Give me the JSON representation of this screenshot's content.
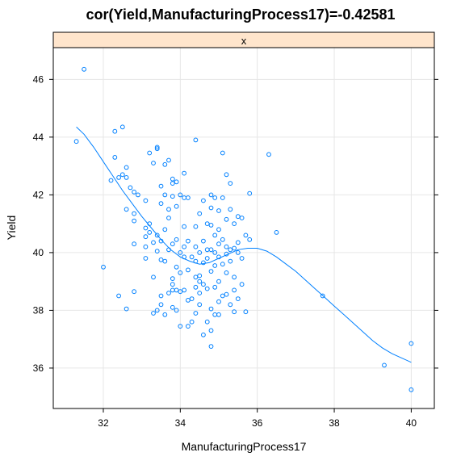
{
  "chart_data": {
    "type": "scatter",
    "title": "cor(Yield,ManufacturingProcess17)=-0.42581",
    "strip_label": "x",
    "xlabel": "ManufacturingProcess17",
    "ylabel": "Yield",
    "xlim": [
      30.7,
      40.6
    ],
    "ylim": [
      34.6,
      47.1
    ],
    "x_ticks": [
      32,
      34,
      36,
      38,
      40
    ],
    "y_ticks": [
      36,
      38,
      40,
      42,
      44,
      46
    ],
    "grid": true,
    "colors": {
      "points": "#0080ff",
      "smooth": "#0080ff",
      "strip": "#ffe5cc"
    },
    "points": [
      [
        31.3,
        43.85
      ],
      [
        31.5,
        46.35
      ],
      [
        32.0,
        39.5
      ],
      [
        32.2,
        42.5
      ],
      [
        32.3,
        43.3
      ],
      [
        32.3,
        44.2
      ],
      [
        32.4,
        42.6
      ],
      [
        32.4,
        38.5
      ],
      [
        32.5,
        44.35
      ],
      [
        32.5,
        42.7
      ],
      [
        32.6,
        42.95
      ],
      [
        32.6,
        42.6
      ],
      [
        32.6,
        41.5
      ],
      [
        32.6,
        38.05
      ],
      [
        32.7,
        42.25
      ],
      [
        32.8,
        41.35
      ],
      [
        32.8,
        41.1
      ],
      [
        32.8,
        38.65
      ],
      [
        32.8,
        42.1
      ],
      [
        32.8,
        40.3
      ],
      [
        32.9,
        42.0
      ],
      [
        33.1,
        41.8
      ],
      [
        33.1,
        40.85
      ],
      [
        33.1,
        40.55
      ],
      [
        33.1,
        39.8
      ],
      [
        33.1,
        40.2
      ],
      [
        33.2,
        43.45
      ],
      [
        33.2,
        41.0
      ],
      [
        33.2,
        40.7
      ],
      [
        33.3,
        37.9
      ],
      [
        33.3,
        43.1
      ],
      [
        33.3,
        40.35
      ],
      [
        33.3,
        39.15
      ],
      [
        33.4,
        43.65
      ],
      [
        33.4,
        43.6
      ],
      [
        33.4,
        40.6
      ],
      [
        33.4,
        40.05
      ],
      [
        33.4,
        38.0
      ],
      [
        33.5,
        42.3
      ],
      [
        33.5,
        41.7
      ],
      [
        33.5,
        40.4
      ],
      [
        33.5,
        39.75
      ],
      [
        33.5,
        38.5
      ],
      [
        33.5,
        38.2
      ],
      [
        33.6,
        43.05
      ],
      [
        33.6,
        42.0
      ],
      [
        33.6,
        40.8
      ],
      [
        33.6,
        39.7
      ],
      [
        33.6,
        37.85
      ],
      [
        33.7,
        43.2
      ],
      [
        33.7,
        41.5
      ],
      [
        33.7,
        41.2
      ],
      [
        33.7,
        40.1
      ],
      [
        33.7,
        38.6
      ],
      [
        33.8,
        42.55
      ],
      [
        33.8,
        42.4
      ],
      [
        33.8,
        41.95
      ],
      [
        33.8,
        40.3
      ],
      [
        33.8,
        39.1
      ],
      [
        33.8,
        38.9
      ],
      [
        33.8,
        38.7
      ],
      [
        33.8,
        38.1
      ],
      [
        33.9,
        42.45
      ],
      [
        33.9,
        41.6
      ],
      [
        33.9,
        40.45
      ],
      [
        33.9,
        39.5
      ],
      [
        33.9,
        38.7
      ],
      [
        33.9,
        38.0
      ],
      [
        34.0,
        42.0
      ],
      [
        34.0,
        40.0
      ],
      [
        34.0,
        39.3
      ],
      [
        34.0,
        38.65
      ],
      [
        34.0,
        37.45
      ],
      [
        34.1,
        42.75
      ],
      [
        34.1,
        41.9
      ],
      [
        34.1,
        40.9
      ],
      [
        34.1,
        40.2
      ],
      [
        34.1,
        39.85
      ],
      [
        34.1,
        38.7
      ],
      [
        34.2,
        41.9
      ],
      [
        34.2,
        40.4
      ],
      [
        34.2,
        39.4
      ],
      [
        34.2,
        38.35
      ],
      [
        34.2,
        37.45
      ],
      [
        34.3,
        39.85
      ],
      [
        34.3,
        38.4
      ],
      [
        34.3,
        37.6
      ],
      [
        34.4,
        43.9
      ],
      [
        34.4,
        40.9
      ],
      [
        34.4,
        40.2
      ],
      [
        34.4,
        39.7
      ],
      [
        34.4,
        39.15
      ],
      [
        34.4,
        38.8
      ],
      [
        34.4,
        37.9
      ],
      [
        34.5,
        41.35
      ],
      [
        34.5,
        40.0
      ],
      [
        34.5,
        39.2
      ],
      [
        34.5,
        39.0
      ],
      [
        34.5,
        38.6
      ],
      [
        34.5,
        38.2
      ],
      [
        34.6,
        41.8
      ],
      [
        34.6,
        40.4
      ],
      [
        34.6,
        39.65
      ],
      [
        34.6,
        38.9
      ],
      [
        34.6,
        37.15
      ],
      [
        34.7,
        41.0
      ],
      [
        34.7,
        40.1
      ],
      [
        34.7,
        39.8
      ],
      [
        34.7,
        38.75
      ],
      [
        34.7,
        37.6
      ],
      [
        34.8,
        42.0
      ],
      [
        34.8,
        41.55
      ],
      [
        34.8,
        40.95
      ],
      [
        34.8,
        40.1
      ],
      [
        34.8,
        39.35
      ],
      [
        34.8,
        38.05
      ],
      [
        34.8,
        37.3
      ],
      [
        34.8,
        36.75
      ],
      [
        34.9,
        41.9
      ],
      [
        34.9,
        40.6
      ],
      [
        34.9,
        40.0
      ],
      [
        34.9,
        39.55
      ],
      [
        34.9,
        38.8
      ],
      [
        34.9,
        37.85
      ],
      [
        35.0,
        41.45
      ],
      [
        35.0,
        40.8
      ],
      [
        35.0,
        40.3
      ],
      [
        35.0,
        39.85
      ],
      [
        35.0,
        39.0
      ],
      [
        35.0,
        38.3
      ],
      [
        35.0,
        37.85
      ],
      [
        35.1,
        43.45
      ],
      [
        35.1,
        41.9
      ],
      [
        35.1,
        40.45
      ],
      [
        35.1,
        39.6
      ],
      [
        35.1,
        38.5
      ],
      [
        35.2,
        42.7
      ],
      [
        35.2,
        41.15
      ],
      [
        35.2,
        40.2
      ],
      [
        35.2,
        39.95
      ],
      [
        35.2,
        39.3
      ],
      [
        35.2,
        38.55
      ],
      [
        35.3,
        42.4
      ],
      [
        35.3,
        41.5
      ],
      [
        35.3,
        40.1
      ],
      [
        35.3,
        39.7
      ],
      [
        35.3,
        38.2
      ],
      [
        35.4,
        41.0
      ],
      [
        35.4,
        40.15
      ],
      [
        35.4,
        39.15
      ],
      [
        35.4,
        38.7
      ],
      [
        35.4,
        37.95
      ],
      [
        35.5,
        41.25
      ],
      [
        35.5,
        40.35
      ],
      [
        35.5,
        40.0
      ],
      [
        35.5,
        38.4
      ],
      [
        35.6,
        41.2
      ],
      [
        35.6,
        39.8
      ],
      [
        35.6,
        38.9
      ],
      [
        35.7,
        40.6
      ],
      [
        35.7,
        37.95
      ],
      [
        35.8,
        42.05
      ],
      [
        35.8,
        40.45
      ],
      [
        36.3,
        43.4
      ],
      [
        36.5,
        40.7
      ],
      [
        37.7,
        38.5
      ],
      [
        39.3,
        36.1
      ],
      [
        40.0,
        36.85
      ],
      [
        40.0,
        35.25
      ]
    ],
    "smooth_line": [
      [
        31.3,
        44.35
      ],
      [
        31.5,
        44.1
      ],
      [
        31.75,
        43.65
      ],
      [
        32.0,
        43.15
      ],
      [
        32.25,
        42.65
      ],
      [
        32.5,
        42.15
      ],
      [
        32.75,
        41.7
      ],
      [
        33.0,
        41.25
      ],
      [
        33.25,
        40.85
      ],
      [
        33.5,
        40.45
      ],
      [
        33.75,
        40.1
      ],
      [
        34.0,
        39.85
      ],
      [
        34.25,
        39.7
      ],
      [
        34.5,
        39.6
      ],
      [
        34.75,
        39.65
      ],
      [
        35.0,
        39.8
      ],
      [
        35.25,
        39.95
      ],
      [
        35.5,
        40.1
      ],
      [
        35.75,
        40.15
      ],
      [
        36.0,
        40.15
      ],
      [
        36.25,
        40.05
      ],
      [
        36.5,
        39.85
      ],
      [
        36.75,
        39.6
      ],
      [
        37.0,
        39.35
      ],
      [
        37.25,
        39.05
      ],
      [
        37.5,
        38.75
      ],
      [
        37.75,
        38.45
      ],
      [
        38.0,
        38.15
      ],
      [
        38.25,
        37.85
      ],
      [
        38.5,
        37.55
      ],
      [
        38.75,
        37.25
      ],
      [
        39.0,
        36.95
      ],
      [
        39.25,
        36.7
      ],
      [
        39.5,
        36.5
      ],
      [
        39.75,
        36.35
      ],
      [
        40.0,
        36.2
      ]
    ]
  }
}
